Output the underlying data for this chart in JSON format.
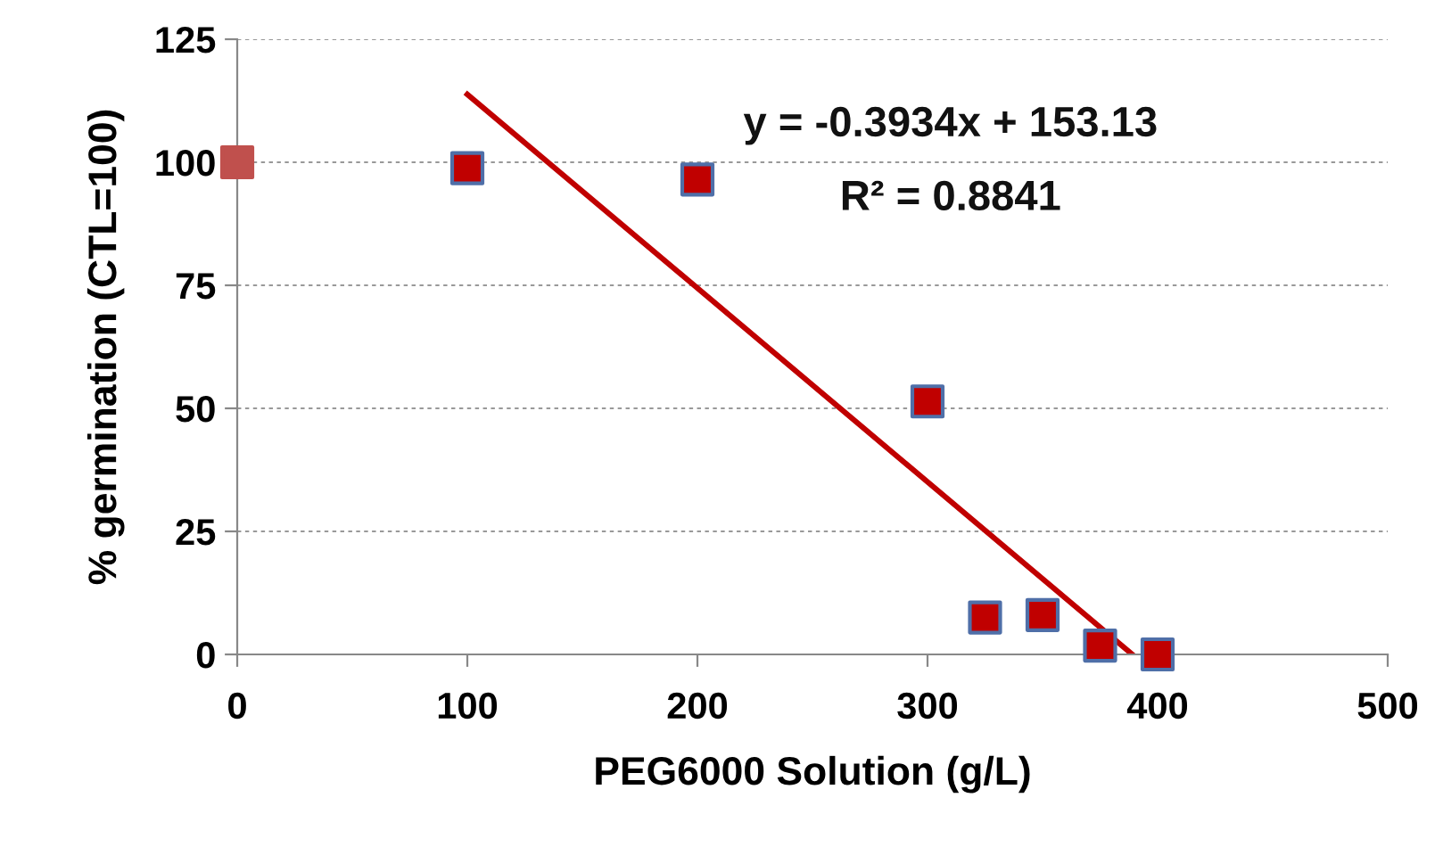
{
  "chart_data": {
    "type": "scatter",
    "xlabel": "PEG6000 Solution (g/L)",
    "ylabel": "% germination (CTL=100)",
    "xlim": [
      0,
      500
    ],
    "xticks": [
      0,
      100,
      200,
      300,
      400,
      500
    ],
    "ylim": [
      0,
      125
    ],
    "yticks": [
      0,
      25,
      50,
      75,
      100,
      125
    ],
    "grid": "y",
    "marker": "square",
    "series": [
      {
        "color": "#c0504d",
        "x": [
          0
        ],
        "values": [
          100
        ]
      },
      {
        "color": "#c00000",
        "x": [
          100,
          200,
          300,
          325,
          350,
          375,
          400
        ],
        "values": [
          98.8,
          96.5,
          51.4,
          7.5,
          8,
          1.8,
          0
        ]
      },
      {
        "type": "line",
        "marker": "none",
        "color": "#c00000",
        "x": [
          100,
          389
        ],
        "values": [
          113.8,
          0
        ]
      }
    ],
    "annotations": [
      "y = -0.3934x + 153.13",
      "R² = 0.8841"
    ]
  }
}
